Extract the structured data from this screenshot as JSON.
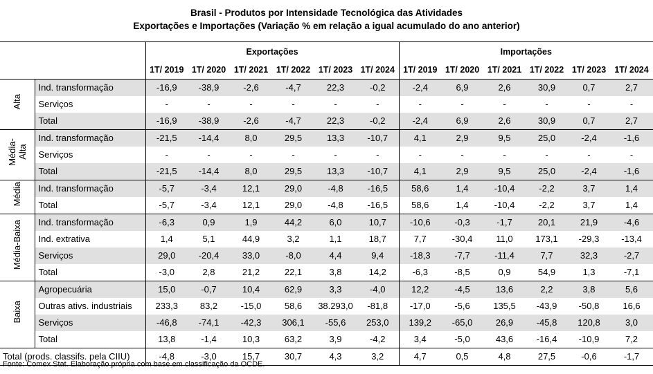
{
  "title": "Brasil - Produtos por Intensidade Tecnológica das Atividades",
  "subtitle": "Exportações e Importações (Variação % em relação a igual acumulado do ano anterior)",
  "headers": {
    "exportacoes": "Exportações",
    "importacoes": "Importações",
    "years": [
      "1T/ 2019",
      "1T/ 2020",
      "1T/ 2021",
      "1T/ 2022",
      "1T/ 2023",
      "1T/ 2024"
    ]
  },
  "groups": [
    {
      "label": "Alta",
      "rows": [
        {
          "label": "Ind. transformação",
          "exp": [
            "-16,9",
            "-38,9",
            "-2,6",
            "-4,7",
            "22,3",
            "-0,2"
          ],
          "imp": [
            "-2,4",
            "6,9",
            "2,6",
            "30,9",
            "0,7",
            "2,7"
          ]
        },
        {
          "label": "Serviços",
          "exp": [
            "-",
            "-",
            "-",
            "-",
            "-",
            "-"
          ],
          "imp": [
            "-",
            "-",
            "-",
            "-",
            "-",
            "-"
          ]
        },
        {
          "label": "Total",
          "exp": [
            "-16,9",
            "-38,9",
            "-2,6",
            "-4,7",
            "22,3",
            "-0,2"
          ],
          "imp": [
            "-2,4",
            "6,9",
            "2,6",
            "30,9",
            "0,7",
            "2,7"
          ]
        }
      ]
    },
    {
      "label_line1": "Média-",
      "label_line2": "Alta",
      "rows": [
        {
          "label": "Ind. transformação",
          "exp": [
            "-21,5",
            "-14,4",
            "8,0",
            "29,5",
            "13,3",
            "-10,7"
          ],
          "imp": [
            "4,1",
            "2,9",
            "9,5",
            "25,0",
            "-2,4",
            "-1,6"
          ]
        },
        {
          "label": "Serviços",
          "exp": [
            "-",
            "-",
            "-",
            "-",
            "-",
            "-"
          ],
          "imp": [
            "-",
            "-",
            "-",
            "-",
            "-",
            "-"
          ]
        },
        {
          "label": "Total",
          "exp": [
            "-21,5",
            "-14,4",
            "8,0",
            "29,5",
            "13,3",
            "-10,7"
          ],
          "imp": [
            "4,1",
            "2,9",
            "9,5",
            "25,0",
            "-2,4",
            "-1,6"
          ]
        }
      ]
    },
    {
      "label": "Média",
      "rows": [
        {
          "label": "Ind. transformação",
          "exp": [
            "-5,7",
            "-3,4",
            "12,1",
            "29,0",
            "-4,8",
            "-16,5"
          ],
          "imp": [
            "58,6",
            "1,4",
            "-10,4",
            "-2,2",
            "3,7",
            "1,4"
          ]
        },
        {
          "label": "Total",
          "exp": [
            "-5,7",
            "-3,4",
            "12,1",
            "29,0",
            "-4,8",
            "-16,5"
          ],
          "imp": [
            "58,6",
            "1,4",
            "-10,4",
            "-2,2",
            "3,7",
            "1,4"
          ]
        }
      ]
    },
    {
      "label": "Média-Baixa",
      "rows": [
        {
          "label": "Ind. transformação",
          "exp": [
            "-6,3",
            "0,9",
            "1,9",
            "44,2",
            "6,0",
            "10,7"
          ],
          "imp": [
            "-10,6",
            "-0,3",
            "-1,7",
            "20,1",
            "21,9",
            "-4,6"
          ]
        },
        {
          "label": "Ind. extrativa",
          "exp": [
            "1,4",
            "5,1",
            "44,9",
            "3,2",
            "1,1",
            "18,7"
          ],
          "imp": [
            "7,7",
            "-30,4",
            "11,0",
            "173,1",
            "-29,3",
            "-13,4"
          ]
        },
        {
          "label": "Serviços",
          "exp": [
            "29,0",
            "-20,4",
            "33,0",
            "-8,0",
            "4,4",
            "9,4"
          ],
          "imp": [
            "-18,3",
            "-7,7",
            "-11,4",
            "7,7",
            "32,3",
            "-2,7"
          ]
        },
        {
          "label": "Total",
          "exp": [
            "-3,0",
            "2,8",
            "21,2",
            "22,1",
            "3,8",
            "14,2"
          ],
          "imp": [
            "-6,3",
            "-8,5",
            "0,9",
            "54,9",
            "1,3",
            "-7,1"
          ]
        }
      ]
    },
    {
      "label": "Baixa",
      "rows": [
        {
          "label": "Agropecuária",
          "exp": [
            "15,0",
            "-0,7",
            "10,4",
            "62,9",
            "3,3",
            "-4,0"
          ],
          "imp": [
            "12,2",
            "-4,5",
            "13,6",
            "2,2",
            "3,8",
            "5,6"
          ]
        },
        {
          "label": "Outras ativs. industriais",
          "exp": [
            "233,3",
            "83,2",
            "-15,0",
            "58,6",
            "38.293,0",
            "-81,8"
          ],
          "imp": [
            "-17,0",
            "-5,6",
            "135,5",
            "-43,9",
            "-50,8",
            "16,6"
          ]
        },
        {
          "label": "Serviços",
          "exp": [
            "-46,8",
            "-74,1",
            "-42,3",
            "306,1",
            "-55,6",
            "253,0"
          ],
          "imp": [
            "139,2",
            "-65,0",
            "26,9",
            "-45,8",
            "120,8",
            "3,0"
          ]
        },
        {
          "label": "Total",
          "exp": [
            "13,8",
            "-1,4",
            "10,3",
            "63,2",
            "3,9",
            "-4,2"
          ],
          "imp": [
            "3,4",
            "-5,0",
            "43,6",
            "-16,4",
            "-10,9",
            "7,2"
          ]
        }
      ]
    }
  ],
  "total_row": {
    "label": "Total (prods. classifs. pela CIIU)",
    "exp": [
      "-4,8",
      "-3,0",
      "15,7",
      "30,7",
      "4,3",
      "3,2"
    ],
    "imp": [
      "4,7",
      "0,5",
      "4,8",
      "27,5",
      "-0,6",
      "-1,7"
    ]
  },
  "source": "Fonte: Comex Stat. Elaboração própria com base em classificação da OCDE."
}
